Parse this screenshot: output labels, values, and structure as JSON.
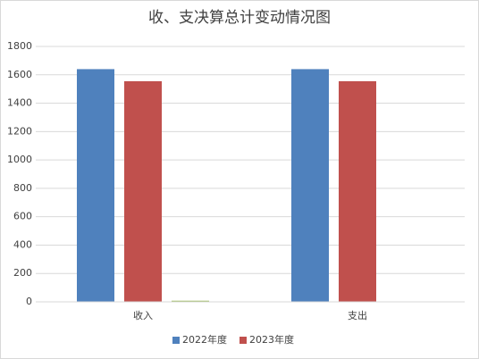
{
  "chart_data": {
    "type": "bar",
    "title": "收、支决算总计变动情况图",
    "categories": [
      "收入",
      "支出"
    ],
    "series": [
      {
        "name": "2022年度",
        "color": "#4f81bd",
        "values": [
          1640,
          1640
        ]
      },
      {
        "name": "2023年度",
        "color": "#c0504d",
        "values": [
          1555,
          1555
        ]
      },
      {
        "color": "#9bbb59",
        "values": [
          8,
          null
        ]
      }
    ],
    "ylim": [
      0,
      1800
    ],
    "yticks": [
      0,
      200,
      400,
      600,
      800,
      1000,
      1200,
      1400,
      1600,
      1800
    ],
    "grid": true,
    "legend": "bottom"
  }
}
